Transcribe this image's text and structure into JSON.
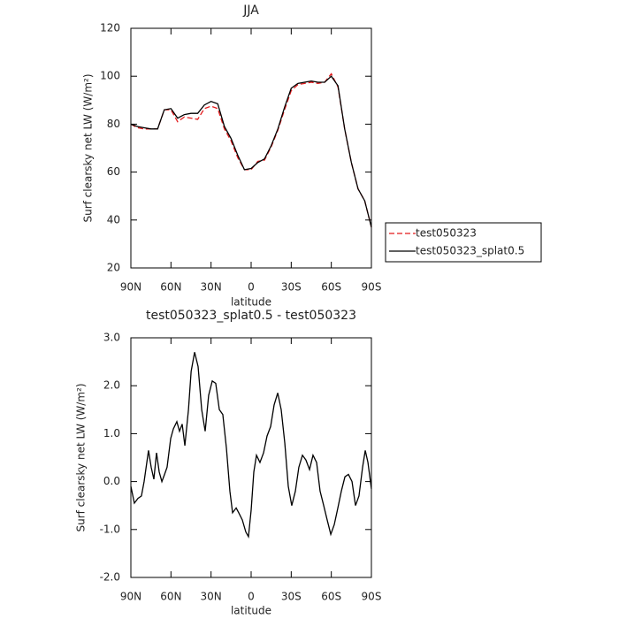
{
  "chart_data": [
    {
      "type": "line",
      "title": "JJA",
      "xlabel": "latitude",
      "ylabel": "Surf clearsky net LW (W/m²)",
      "x": [
        90,
        85,
        80,
        75,
        70,
        65,
        60,
        55,
        50,
        45,
        40,
        35,
        30,
        25,
        20,
        15,
        10,
        5,
        0,
        -5,
        -10,
        -15,
        -20,
        -25,
        -30,
        -35,
        -40,
        -45,
        -50,
        -55,
        -60,
        -65,
        -70,
        -75,
        -80,
        -85,
        -90
      ],
      "series": [
        {
          "name": "test050323",
          "color": "#e41a1c",
          "dash": "dashed",
          "values": [
            80,
            78.5,
            78,
            78,
            78,
            86,
            86,
            81,
            83,
            82.5,
            82,
            86.5,
            87.5,
            86.5,
            78,
            73,
            66,
            61,
            61,
            64.5,
            65,
            70.5,
            77.5,
            86,
            94,
            96.5,
            97,
            97.5,
            97,
            97.5,
            101,
            95.5,
            78,
            64,
            53,
            48,
            37
          ]
        },
        {
          "name": "test050323_splat0.5",
          "color": "#000000",
          "dash": "solid",
          "values": [
            80,
            79,
            78.5,
            78,
            78,
            86,
            86.5,
            82.5,
            84,
            84.5,
            84.5,
            88,
            89.5,
            88.5,
            79,
            74,
            67,
            61,
            61.5,
            64,
            65.5,
            71,
            78,
            87,
            95,
            97,
            97.5,
            98,
            97.5,
            97.5,
            100,
            96,
            78,
            64,
            53,
            48,
            37
          ]
        }
      ],
      "xlim": [
        90,
        -90
      ],
      "xticks": [
        {
          "value": 90,
          "label": "90N"
        },
        {
          "value": 60,
          "label": "60N"
        },
        {
          "value": 30,
          "label": "30N"
        },
        0,
        {
          "value": -30,
          "label": "30S"
        },
        {
          "value": -60,
          "label": "60S"
        },
        {
          "value": -90,
          "label": "90S"
        }
      ],
      "ylim": [
        20,
        120
      ],
      "yticks": [
        20,
        40,
        60,
        80,
        100,
        120
      ],
      "legend": "right"
    },
    {
      "type": "line",
      "title": "test050323_splat0.5 - test050323",
      "xlabel": "latitude",
      "ylabel": "Surf clearsky net LW (W/m²)",
      "x": [
        90,
        87.4,
        84.7,
        82.1,
        80.1,
        76.8,
        74.8,
        72.8,
        70.8,
        68.8,
        66.8,
        64.8,
        62.9,
        60.2,
        58.2,
        55.6,
        53.6,
        51.6,
        49.6,
        46.9,
        44.9,
        42.3,
        39.7,
        37,
        34.4,
        31.8,
        29.1,
        26.5,
        23.8,
        21.2,
        18.5,
        15.9,
        13.9,
        11.2,
        9.3,
        6.6,
        4,
        2,
        0,
        -2,
        -4,
        -6.6,
        -9.3,
        -11.9,
        -14.6,
        -17.2,
        -19.9,
        -22.5,
        -25.2,
        -27.8,
        -30.4,
        -33.1,
        -35.7,
        -38.4,
        -41,
        -43.7,
        -46.3,
        -49,
        -51.6,
        -54.3,
        -56.9,
        -59.6,
        -62.2,
        -64.9,
        -67.5,
        -70.2,
        -72.8,
        -75.5,
        -78.1,
        -80.7,
        -83.4,
        -85.4,
        -87.4,
        -90
      ],
      "values": [
        -0.1,
        -0.45,
        -0.35,
        -0.3,
        0,
        0.65,
        0.3,
        0.05,
        0.6,
        0.2,
        0,
        0.15,
        0.3,
        0.9,
        1.1,
        1.25,
        1.05,
        1.2,
        0.75,
        1.5,
        2.3,
        2.7,
        2.4,
        1.5,
        1.05,
        1.8,
        2.1,
        2.05,
        1.5,
        1.4,
        0.7,
        -0.2,
        -0.65,
        -0.55,
        -0.65,
        -0.8,
        -1.05,
        -1.15,
        -0.6,
        0.2,
        0.55,
        0.4,
        0.6,
        0.95,
        1.15,
        1.6,
        1.85,
        1.5,
        0.8,
        -0.1,
        -0.5,
        -0.2,
        0.3,
        0.55,
        0.45,
        0.25,
        0.55,
        0.4,
        -0.2,
        -0.5,
        -0.8,
        -1.1,
        -0.9,
        -0.55,
        -0.2,
        0.1,
        0.15,
        0,
        -0.5,
        -0.3,
        0.3,
        0.65,
        0.4,
        -0.15
      ],
      "color": "#000000",
      "dash": "solid",
      "xlim": [
        90,
        -90
      ],
      "xticks": [
        {
          "value": 90,
          "label": "90N"
        },
        {
          "value": 60,
          "label": "60N"
        },
        {
          "value": 30,
          "label": "30N"
        },
        0,
        {
          "value": -30,
          "label": "30S"
        },
        {
          "value": -60,
          "label": "60S"
        },
        {
          "value": -90,
          "label": "90S"
        }
      ],
      "ylim": [
        -2,
        3
      ],
      "yticks": [
        {
          "value": -2,
          "label": "-2.0"
        },
        {
          "value": -1,
          "label": "-1.0"
        },
        {
          "value": 0,
          "label": "0.0"
        },
        {
          "value": 1,
          "label": "1.0"
        },
        {
          "value": 2,
          "label": "2.0"
        },
        {
          "value": 3,
          "label": "3.0"
        }
      ]
    }
  ]
}
